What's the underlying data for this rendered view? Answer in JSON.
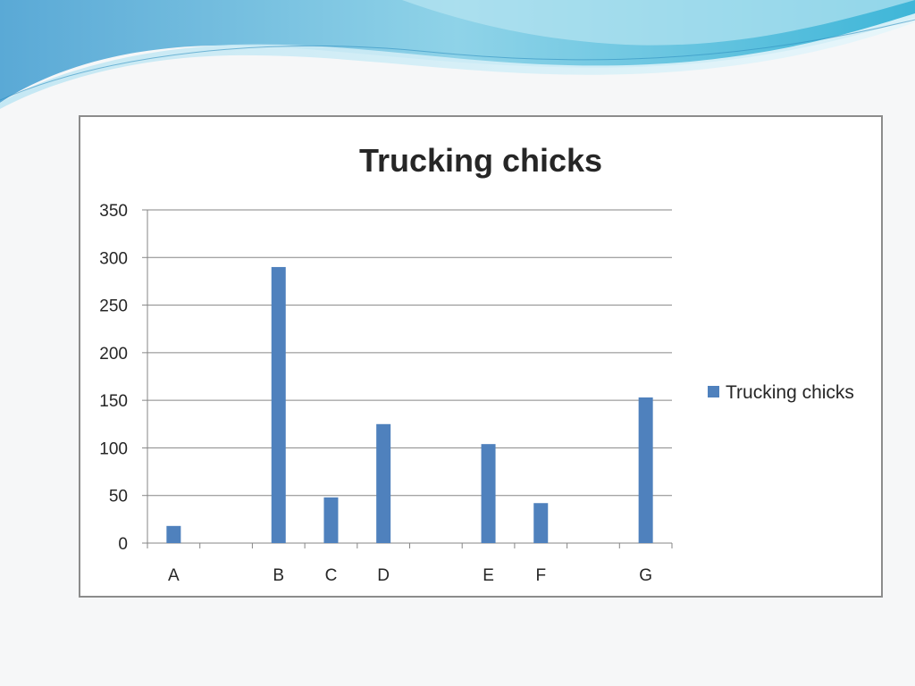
{
  "chart_data": {
    "type": "bar",
    "title": "Trucking chicks",
    "categories": [
      "A",
      "",
      "B",
      "C",
      "D",
      "",
      "E",
      "F",
      "",
      "G"
    ],
    "series": [
      {
        "name": "Trucking chicks",
        "color": "#4f81bd",
        "values": [
          18,
          null,
          290,
          48,
          125,
          null,
          104,
          42,
          null,
          153
        ]
      }
    ],
    "ylim": [
      0,
      350
    ],
    "yticks": [
      0,
      50,
      100,
      150,
      200,
      250,
      300,
      350
    ],
    "grid": true,
    "legend": "right",
    "xlabel": "",
    "ylabel": ""
  }
}
